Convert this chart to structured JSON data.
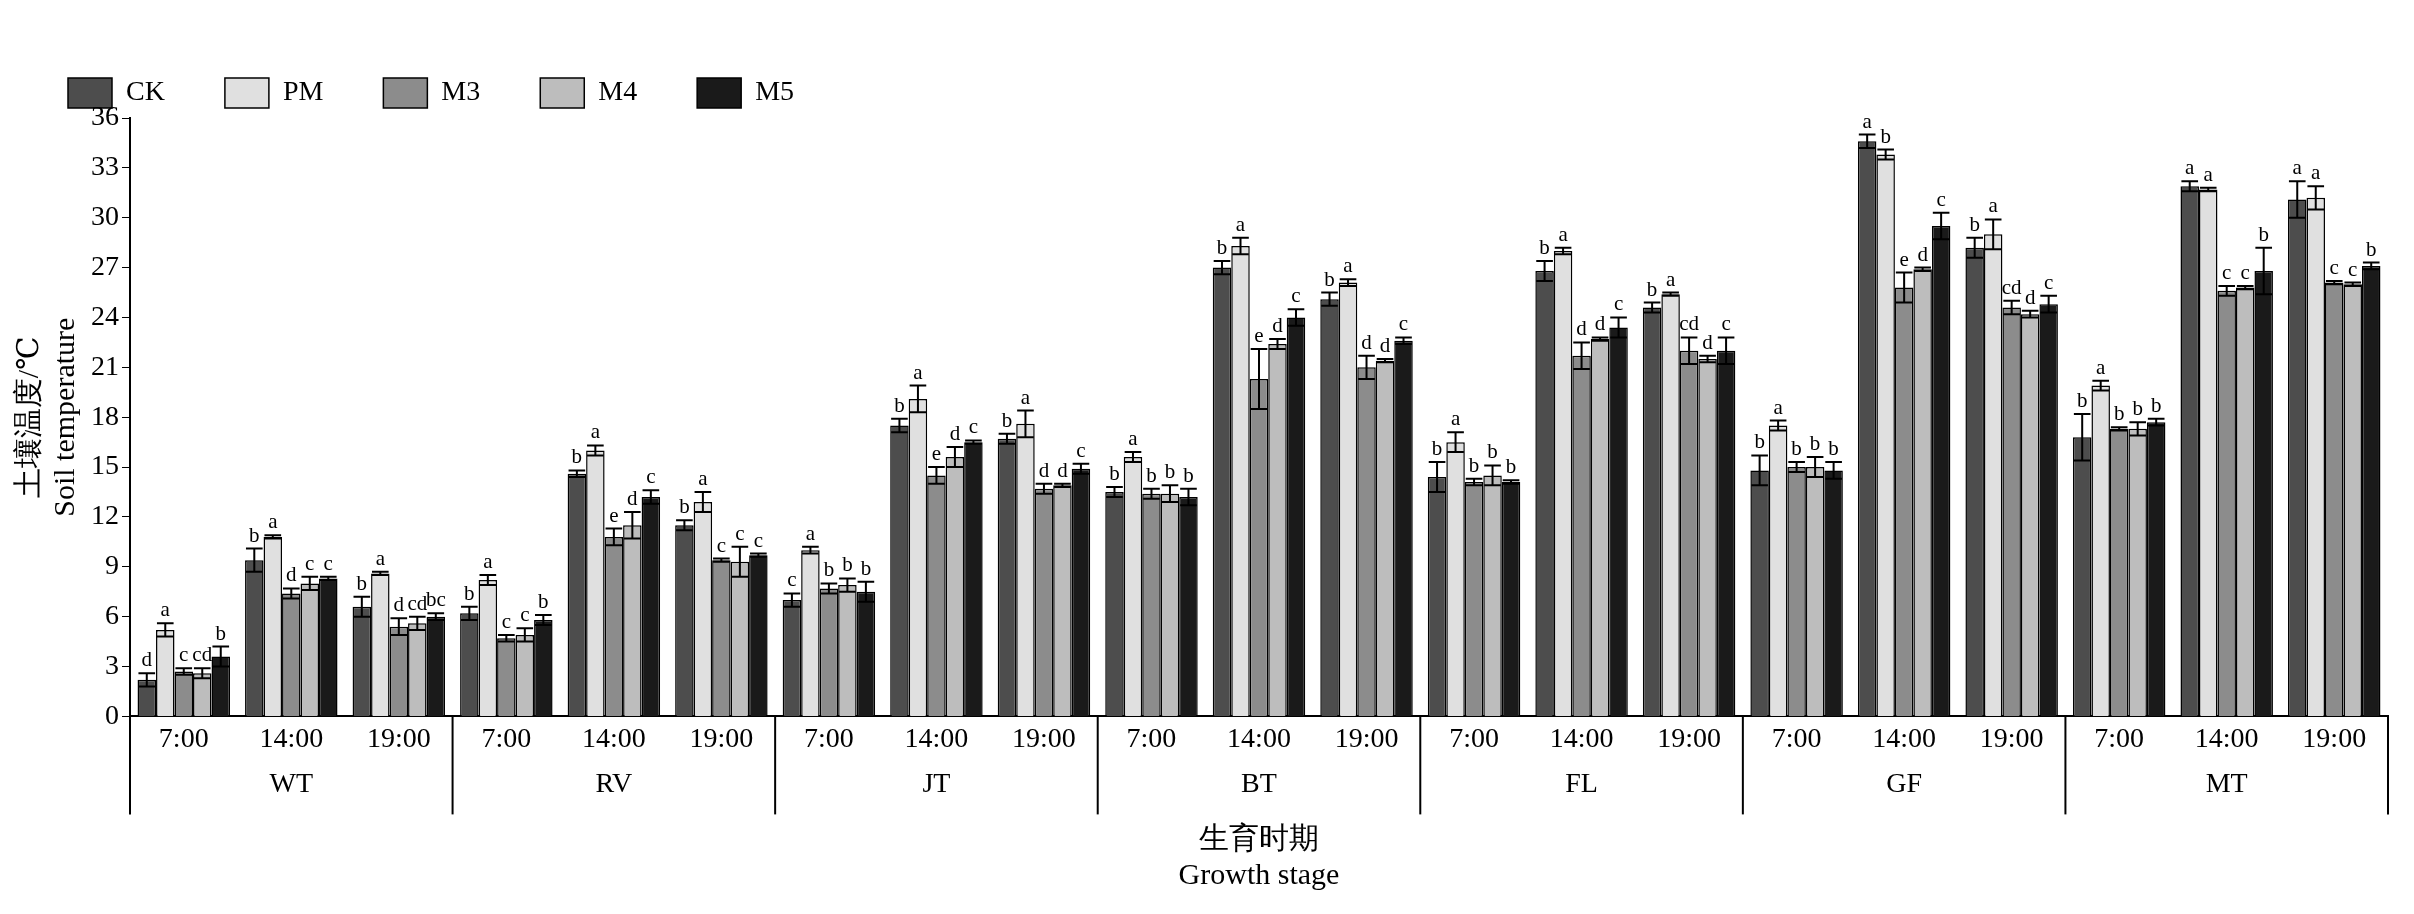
{
  "chart_data": {
    "type": "bar",
    "xlabel": "生育时期\nGrowth stage",
    "ylabel": "土壤温度/℃\nSoil temperature",
    "categories": [
      "7:00",
      "14:00",
      "19:00",
      "7:00",
      "14:00",
      "19:00",
      "7:00",
      "14:00",
      "19:00",
      "7:00",
      "14:00",
      "19:00",
      "7:00",
      "14:00",
      "19:00",
      "7:00",
      "14:00",
      "19:00",
      "7:00",
      "14:00",
      "19:00"
    ],
    "annotations": [
      "WT",
      "RV",
      "JT",
      "BT",
      "FL",
      "GF",
      "MT"
    ],
    "ylim": [
      0,
      36
    ],
    "yticks": [
      0,
      3,
      6,
      9,
      12,
      15,
      18,
      21,
      24,
      27,
      30,
      33,
      36
    ],
    "grid": false,
    "legend": "top left",
    "series": [
      {
        "name": "CK",
        "color": "#4d4d4d",
        "values": [
          2.2,
          9.4,
          6.6,
          6.2,
          14.6,
          11.5,
          7.0,
          17.5,
          16.7,
          13.5,
          27.0,
          25.1,
          14.4,
          26.8,
          24.6,
          14.8,
          34.6,
          28.2,
          16.8,
          31.9,
          31.1
        ],
        "errors": [
          0.4,
          0.7,
          0.6,
          0.4,
          0.2,
          0.3,
          0.4,
          0.4,
          0.3,
          0.3,
          0.4,
          0.4,
          0.9,
          0.6,
          0.3,
          0.9,
          0.4,
          0.6,
          1.4,
          0.3,
          1.1
        ],
        "value_labels": [
          "d",
          "b",
          "b",
          "b",
          "b",
          "b",
          "c",
          "b",
          "b",
          "b",
          "b",
          "b",
          "b",
          "b",
          "b",
          "b",
          "a",
          "b",
          "b",
          "a",
          "a"
        ]
      },
      {
        "name": "PM",
        "color": "#e0e0e0",
        "values": [
          5.2,
          10.8,
          8.6,
          8.2,
          16.0,
          12.9,
          10.0,
          19.1,
          17.6,
          15.6,
          28.3,
          26.1,
          16.5,
          28.0,
          25.4,
          17.5,
          33.8,
          29.0,
          19.9,
          31.7,
          31.2
        ],
        "errors": [
          0.4,
          0.1,
          0.1,
          0.3,
          0.3,
          0.6,
          0.2,
          0.8,
          0.8,
          0.3,
          0.5,
          0.2,
          0.6,
          0.2,
          0.1,
          0.3,
          0.3,
          0.9,
          0.3,
          0.1,
          0.7
        ],
        "value_labels": [
          "a",
          "a",
          "a",
          "a",
          "a",
          "a",
          "a",
          "a",
          "a",
          "a",
          "a",
          "a",
          "a",
          "a",
          "a",
          "a",
          "b",
          "a",
          "a",
          "a",
          "a"
        ]
      },
      {
        "name": "M3",
        "color": "#8c8c8c",
        "values": [
          2.7,
          7.4,
          5.4,
          4.7,
          10.8,
          9.4,
          7.7,
          14.5,
          13.7,
          13.4,
          20.3,
          21.0,
          14.1,
          21.7,
          22.0,
          15.0,
          25.8,
          24.6,
          17.3,
          25.6,
          26.1
        ],
        "errors": [
          0.2,
          0.3,
          0.5,
          0.2,
          0.5,
          0.1,
          0.3,
          0.5,
          0.3,
          0.3,
          1.8,
          0.7,
          0.2,
          0.8,
          0.8,
          0.3,
          0.9,
          0.4,
          0.1,
          0.3,
          0.1
        ],
        "value_labels": [
          "c",
          "d",
          "d",
          "c",
          "e",
          "c",
          "b",
          "e",
          "d",
          "b",
          "e",
          "d",
          "b",
          "d",
          "cd",
          "b",
          "e",
          "cd",
          "b",
          "c",
          "c"
        ]
      },
      {
        "name": "M4",
        "color": "#bdbdbd",
        "values": [
          2.6,
          8.0,
          5.6,
          4.9,
          11.5,
          9.3,
          7.9,
          15.6,
          13.9,
          13.4,
          22.4,
          21.4,
          14.5,
          22.7,
          21.5,
          15.0,
          26.9,
          24.2,
          17.3,
          25.8,
          26.0
        ],
        "errors": [
          0.3,
          0.4,
          0.4,
          0.4,
          0.8,
          0.9,
          0.4,
          0.6,
          0.1,
          0.5,
          0.3,
          0.1,
          0.6,
          0.1,
          0.2,
          0.6,
          0.1,
          0.2,
          0.4,
          0.1,
          0.1
        ],
        "value_labels": [
          "cd",
          "c",
          "cd",
          "c",
          "d",
          "c",
          "b",
          "d",
          "d",
          "b",
          "d",
          "d",
          "b",
          "d",
          "d",
          "b",
          "d",
          "d",
          "b",
          "c",
          "c"
        ]
      },
      {
        "name": "M5",
        "color": "#1a1a1a",
        "values": [
          3.6,
          8.3,
          6.0,
          5.8,
          13.2,
          9.7,
          7.5,
          16.5,
          14.9,
          13.2,
          24.0,
          22.6,
          14.1,
          23.4,
          22.0,
          14.8,
          29.5,
          24.8,
          17.7,
          26.8,
          27.1
        ],
        "errors": [
          0.6,
          0.1,
          0.2,
          0.3,
          0.4,
          0.1,
          0.6,
          0.1,
          0.3,
          0.5,
          0.5,
          0.2,
          0.1,
          0.6,
          0.8,
          0.5,
          0.8,
          0.5,
          0.2,
          1.4,
          0.2
        ],
        "value_labels": [
          "b",
          "c",
          "bc",
          "b",
          "c",
          "c",
          "b",
          "c",
          "c",
          "b",
          "c",
          "c",
          "b",
          "c",
          "c",
          "b",
          "c",
          "c",
          "b",
          "b",
          "b"
        ]
      }
    ]
  }
}
